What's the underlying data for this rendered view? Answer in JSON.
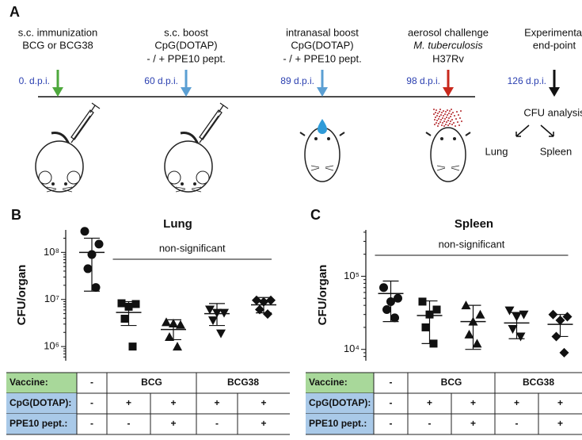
{
  "panel_a": {
    "label": "A",
    "steps": [
      {
        "lines": [
          "s.c. immunization",
          "BCG or BCG38"
        ],
        "dpi": "0. d.p.i."
      },
      {
        "lines": [
          "s.c. boost",
          "CpG(DOTAP)",
          "- / + PPE10 pept."
        ],
        "dpi": "60 d.p.i."
      },
      {
        "lines": [
          "intranasal boost",
          "CpG(DOTAP)",
          "- / + PPE10 pept."
        ],
        "dpi": "89 d.p.i."
      },
      {
        "lines": [
          "aerosol challenge",
          "M. tuberculosis",
          "H37Rv"
        ],
        "dpi": "98 d.p.i."
      },
      {
        "lines": [
          "Experimental",
          "end-point"
        ],
        "dpi": "126 d.p.i."
      }
    ],
    "analysis": "CFU analysis",
    "organs": [
      "Lung",
      "Spleen"
    ]
  },
  "chart_data": [
    {
      "type": "scatter",
      "panel": "B",
      "title": "Lung",
      "ylabel": "CFU/organ",
      "log_scale": true,
      "ylim": [
        500000,
        300000000
      ],
      "yticks": [
        {
          "value": 1000000,
          "label": "10⁶"
        },
        {
          "value": 10000000,
          "label": "10⁷"
        },
        {
          "value": 100000000,
          "label": "10⁸"
        }
      ],
      "annotation": "non-significant",
      "groups": [
        {
          "marker": "circle",
          "values": [
            280000000,
            150000000,
            90000000,
            45000000,
            18000000
          ],
          "mean": 100000000,
          "upper": 200000000,
          "lower": 15000000
        },
        {
          "marker": "square",
          "values": [
            8300000,
            8000000,
            7000000,
            3900000,
            1000000
          ],
          "mean": 5300000,
          "upper": 9000000,
          "lower": 2800000
        },
        {
          "marker": "triangle-up",
          "values": [
            3300000,
            2900000,
            3100000,
            1600000,
            1000000
          ],
          "mean": 2300000,
          "upper": 3700000,
          "lower": 1400000
        },
        {
          "marker": "triangle-down",
          "values": [
            6100000,
            5200000,
            5200000,
            3600000,
            1900000
          ],
          "mean": 5000000,
          "upper": 8200000,
          "lower": 2800000
        },
        {
          "marker": "diamond",
          "values": [
            9600000,
            9600000,
            8900000,
            6100000,
            4900000
          ],
          "mean": 7700000,
          "upper": 11000000,
          "lower": 5200000
        }
      ],
      "table": {
        "rows": [
          [
            "Vaccine:",
            "-",
            "BCG",
            "BCG38"
          ],
          [
            "CpG(DOTAP):",
            "-",
            "+",
            "+",
            "+",
            "+"
          ],
          [
            "PPE10 pept.:",
            "-",
            "-",
            "+",
            "-",
            "+"
          ]
        ]
      }
    },
    {
      "type": "scatter",
      "panel": "C",
      "title": "Spleen",
      "ylabel": "CFU/organ",
      "log_scale": true,
      "ylim": [
        7000,
        430000
      ],
      "yticks": [
        {
          "value": 10000,
          "label": "10⁴"
        },
        {
          "value": 100000,
          "label": "10⁵"
        }
      ],
      "annotation": "non-significant",
      "groups": [
        {
          "marker": "circle",
          "values": [
            70000,
            50000,
            45000,
            35000,
            27000
          ],
          "mean": 58000,
          "upper": 86000,
          "lower": 24000
        },
        {
          "marker": "square",
          "values": [
            45000,
            35000,
            30000,
            20000,
            12000
          ],
          "mean": 29000,
          "upper": 46000,
          "lower": 12000
        },
        {
          "marker": "triangle-up",
          "values": [
            40000,
            30000,
            24000,
            16000,
            12000
          ],
          "mean": 24000,
          "upper": 40000,
          "lower": 10000
        },
        {
          "marker": "triangle-down",
          "values": [
            34000,
            30000,
            28000,
            19000,
            15000
          ],
          "mean": 23000,
          "upper": 32000,
          "lower": 14000
        },
        {
          "marker": "diamond",
          "values": [
            30000,
            28000,
            25000,
            15000,
            9000
          ],
          "mean": 22000,
          "upper": 30000,
          "lower": 15000
        }
      ],
      "table": {
        "rows": [
          [
            "Vaccine:",
            "-",
            "BCG",
            "BCG38"
          ],
          [
            "CpG(DOTAP):",
            "-",
            "+",
            "+",
            "+",
            "+"
          ],
          [
            "PPE10 pept.:",
            "-",
            "-",
            "+",
            "-",
            "+"
          ]
        ]
      }
    }
  ]
}
